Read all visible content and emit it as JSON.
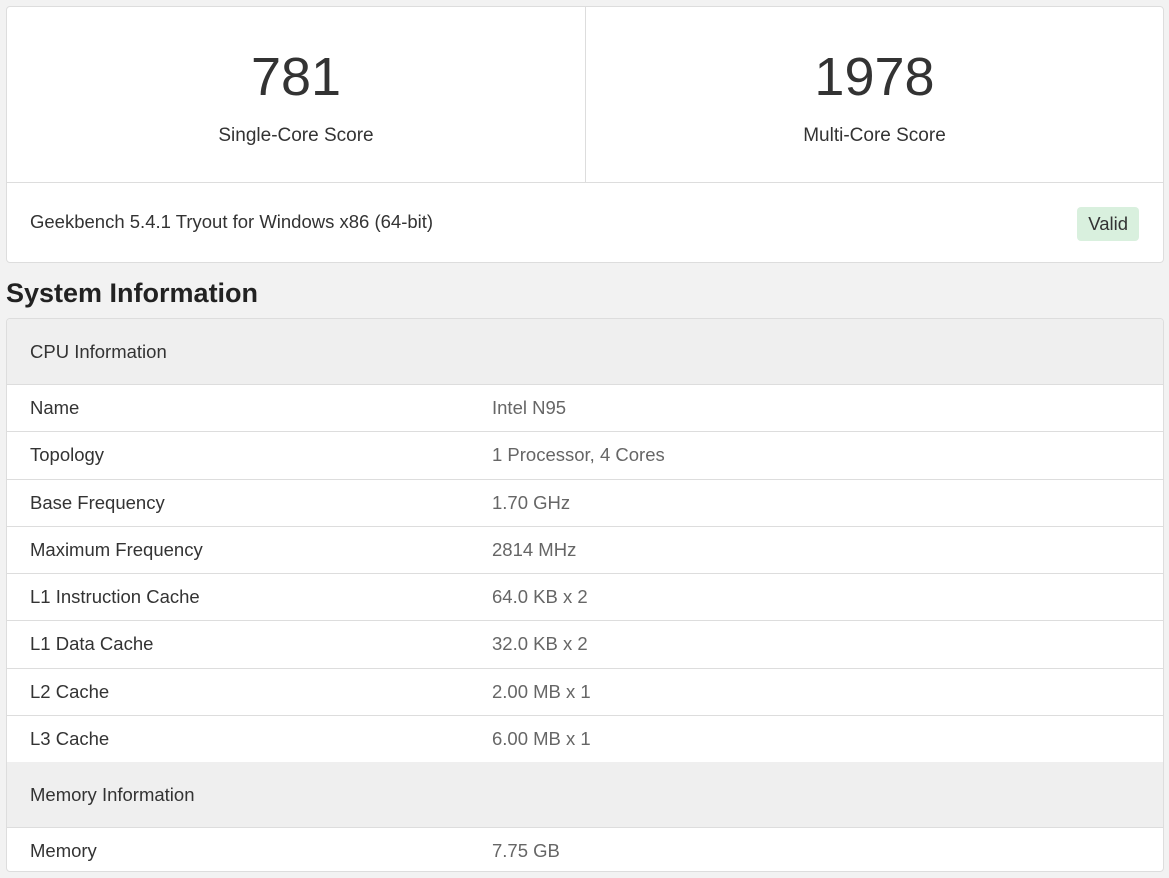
{
  "scores": {
    "single": {
      "value": "781",
      "label": "Single-Core Score"
    },
    "multi": {
      "value": "1978",
      "label": "Multi-Core Score"
    }
  },
  "version": "Geekbench 5.4.1 Tryout for Windows x86 (64-bit)",
  "valid_label": "Valid",
  "section_title": "System Information",
  "cpu": {
    "header": "CPU Information",
    "rows": [
      {
        "k": "Name",
        "v": "Intel N95"
      },
      {
        "k": "Topology",
        "v": "1 Processor, 4 Cores"
      },
      {
        "k": "Base Frequency",
        "v": "1.70 GHz"
      },
      {
        "k": "Maximum Frequency",
        "v": "2814 MHz"
      },
      {
        "k": "L1 Instruction Cache",
        "v": "64.0 KB x 2"
      },
      {
        "k": "L1 Data Cache",
        "v": "32.0 KB x 2"
      },
      {
        "k": "L2 Cache",
        "v": "2.00 MB x 1"
      },
      {
        "k": "L3 Cache",
        "v": "6.00 MB x 1"
      }
    ]
  },
  "memory": {
    "header": "Memory Information",
    "rows": [
      {
        "k": "Memory",
        "v": "7.75 GB"
      }
    ]
  }
}
